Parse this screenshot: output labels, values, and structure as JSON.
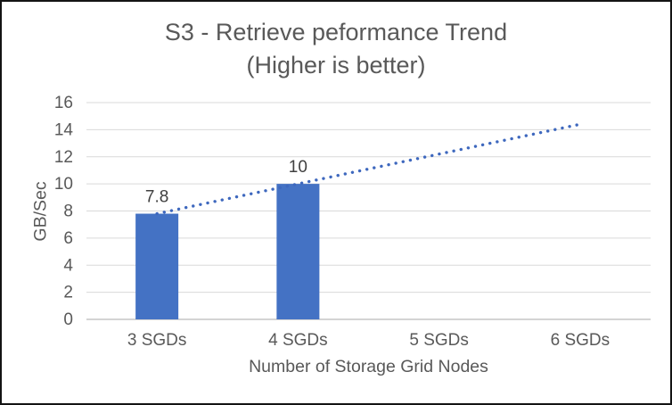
{
  "chart_data": {
    "type": "bar",
    "title": "S3 - Retrieve peformance Trend",
    "subtitle": "(Higher is better)",
    "categories": [
      "3 SGDs",
      "4 SGDs",
      "5 SGDs",
      "6 SGDs"
    ],
    "values": [
      7.8,
      10,
      null,
      null
    ],
    "data_labels": [
      "7.8",
      "10"
    ],
    "xlabel": "Number of Storage Grid Nodes",
    "ylabel": "GB/Sec",
    "ylim": [
      0,
      16
    ],
    "ytick_step": 2,
    "yticks": [
      0,
      2,
      4,
      6,
      8,
      10,
      12,
      14,
      16
    ],
    "grid": true,
    "legend": "none",
    "colors": {
      "bar": "#4472C4",
      "gridline": "#D9D9D9",
      "axis_line": "#C6C6C6",
      "text": "#595959",
      "data_label": "#404040"
    },
    "trendline": {
      "style": "dotted",
      "color": "#3E68BE",
      "start": {
        "category_index": 0,
        "value": 7.8
      },
      "end": {
        "category_index": 3,
        "value": 14.4
      }
    }
  }
}
